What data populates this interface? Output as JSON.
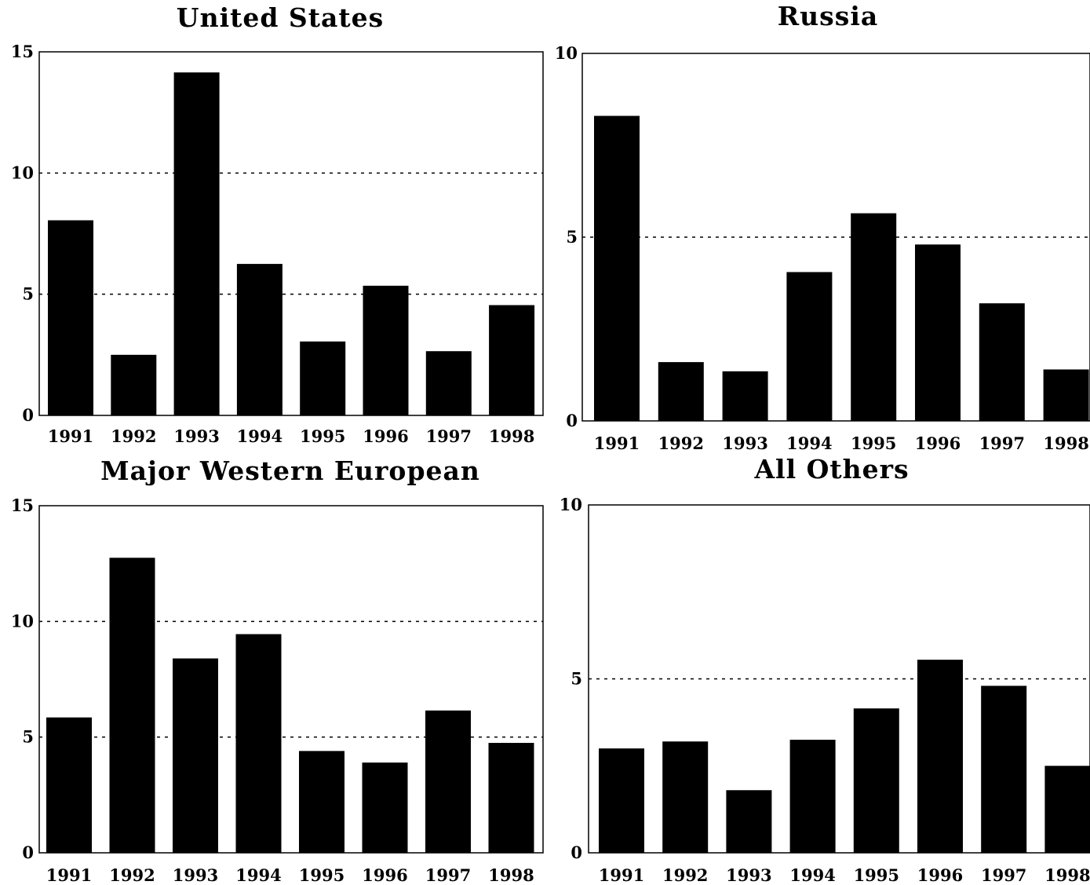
{
  "colors": {
    "bar": "#000000",
    "background": "#ffffff"
  },
  "chart_data": [
    {
      "type": "bar",
      "title": "United States",
      "categories": [
        "1991",
        "1992",
        "1993",
        "1994",
        "1995",
        "1996",
        "1997",
        "1998"
      ],
      "values": [
        8.05,
        2.5,
        14.15,
        6.25,
        3.05,
        5.35,
        2.65,
        4.55
      ],
      "ylim": [
        0,
        15
      ],
      "yticks": [
        "0",
        "5",
        "10",
        "15"
      ],
      "grid_lines": [
        5,
        10
      ],
      "xlabel": "",
      "ylabel": ""
    },
    {
      "type": "bar",
      "title": "Russia",
      "categories": [
        "1991",
        "1992",
        "1993",
        "1994",
        "1995",
        "1996",
        "1997",
        "1998"
      ],
      "values": [
        8.3,
        1.6,
        1.35,
        4.05,
        5.65,
        4.8,
        3.2,
        1.4
      ],
      "ylim": [
        0,
        10
      ],
      "yticks": [
        "0",
        "5",
        "10"
      ],
      "grid_lines": [
        5
      ],
      "xlabel": "",
      "ylabel": ""
    },
    {
      "type": "bar",
      "title": "Major Western European",
      "categories": [
        "1991",
        "1992",
        "1993",
        "1994",
        "1995",
        "1996",
        "1997",
        "1998"
      ],
      "values": [
        5.85,
        12.75,
        8.4,
        9.45,
        4.4,
        3.9,
        6.15,
        4.75
      ],
      "ylim": [
        0,
        15
      ],
      "yticks": [
        "0",
        "5",
        "10",
        "15"
      ],
      "grid_lines": [
        5,
        10
      ],
      "xlabel": "",
      "ylabel": ""
    },
    {
      "type": "bar",
      "title": "All Others",
      "categories": [
        "1991",
        "1992",
        "1993",
        "1994",
        "1995",
        "1996",
        "1997",
        "1998"
      ],
      "values": [
        3.0,
        3.2,
        1.8,
        3.25,
        4.15,
        5.55,
        4.8,
        2.5
      ],
      "ylim": [
        0,
        10
      ],
      "yticks": [
        "0",
        "5",
        "10"
      ],
      "grid_lines": [
        5
      ],
      "xlabel": "",
      "ylabel": ""
    }
  ]
}
